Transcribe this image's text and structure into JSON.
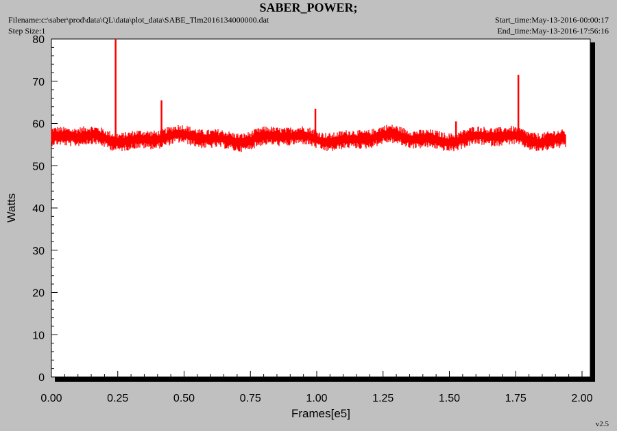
{
  "header": {
    "title": "SABER_POWER;",
    "filename": "Filename:c:\\saber\\prod\\data\\QL\\data\\plot_data\\SABE_Tlm2016134000000.dat",
    "step_size": "Step Size:1",
    "start_time": "Start_time:May-13-2016-00:00:17",
    "end_time": "End_time:May-13-2016-17:56:16",
    "version": "v2.5"
  },
  "colors": {
    "background": "#c0c0c0",
    "plot_area": "#ffffff",
    "series": "#ff0000",
    "axis": "#000000"
  },
  "chart_data": {
    "type": "line",
    "title": "SABER_POWER;",
    "xlabel": "Frames[e5]",
    "ylabel": "Watts",
    "xlim": [
      0.0,
      2.05
    ],
    "ylim": [
      0,
      80
    ],
    "xticks": [
      "0.00",
      "0.25",
      "0.50",
      "0.75",
      "1.00",
      "1.25",
      "1.50",
      "1.75",
      "2.00"
    ],
    "yticks": [
      "0",
      "10",
      "20",
      "30",
      "40",
      "50",
      "60",
      "70",
      "80"
    ],
    "grid": false,
    "series": [
      {
        "color": "#ff0000",
        "x_range": [
          0.0,
          1.94
        ],
        "band": {
          "baseline": 56.5,
          "low": 53.5,
          "high": 59.5
        },
        "spikes": [
          {
            "x": 0.242,
            "y": 80
          },
          {
            "x": 0.415,
            "y": 65.5
          },
          {
            "x": 0.995,
            "y": 63.5
          },
          {
            "x": 1.525,
            "y": 60.5
          },
          {
            "x": 1.76,
            "y": 71.5
          }
        ]
      }
    ]
  }
}
